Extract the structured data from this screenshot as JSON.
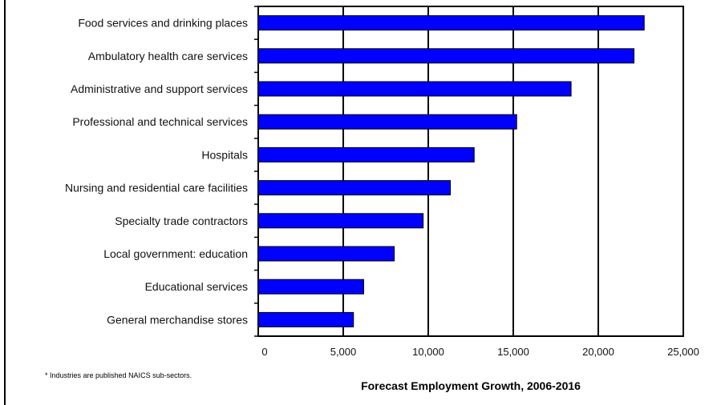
{
  "chart_data": {
    "type": "bar",
    "orientation": "horizontal",
    "categories": [
      "Food services and drinking places",
      "Ambulatory health care services",
      "Administrative and support services",
      "Professional and technical services",
      "Hospitals",
      "Nursing and residential care facilities",
      "Specialty trade contractors",
      "Local government: education",
      "Educational services",
      "General merchandise stores"
    ],
    "values": [
      22700,
      22100,
      18400,
      15200,
      12700,
      11300,
      9700,
      8000,
      6200,
      5600
    ],
    "xlabel": "Forecast Employment Growth, 2006-2016",
    "xlim": [
      0,
      25000
    ],
    "xticks": [
      0,
      5000,
      10000,
      15000,
      20000,
      25000
    ],
    "xtick_labels": [
      "0",
      "5,000",
      "10,000",
      "15,000",
      "20,000",
      "25,000"
    ],
    "footnote": "* Industries are published NAICS sub-sectors.",
    "grid": "vertical",
    "legend": "none",
    "bar_color": "#0000ff"
  }
}
